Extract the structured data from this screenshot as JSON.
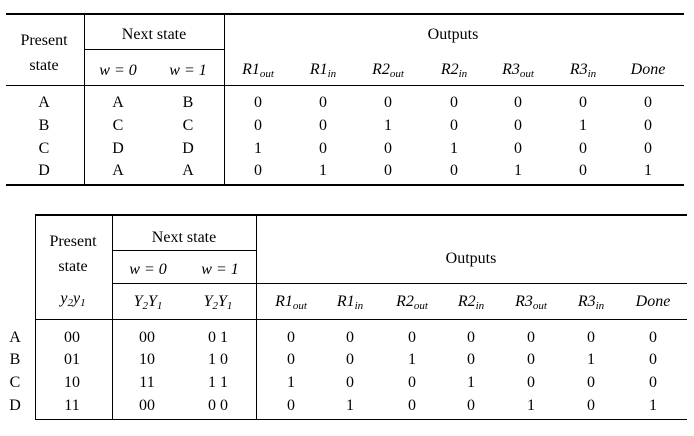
{
  "table1": {
    "header": {
      "present": "Present",
      "state": "state",
      "next_state": "Next state",
      "w0": "w = 0",
      "w1": "w = 1",
      "outputs": "Outputs",
      "out_cols": [
        {
          "base": "R1",
          "sub": "out"
        },
        {
          "base": "R1",
          "sub": "in"
        },
        {
          "base": "R2",
          "sub": "out"
        },
        {
          "base": "R2",
          "sub": "in"
        },
        {
          "base": "R3",
          "sub": "out"
        },
        {
          "base": "R3",
          "sub": "in"
        },
        {
          "base": "Done",
          "sub": ""
        }
      ]
    },
    "rows": [
      {
        "state": "A",
        "w0": "A",
        "w1": "B",
        "outputs": [
          "0",
          "0",
          "0",
          "0",
          "0",
          "0",
          "0"
        ]
      },
      {
        "state": "B",
        "w0": "C",
        "w1": "C",
        "outputs": [
          "0",
          "0",
          "1",
          "0",
          "0",
          "1",
          "0"
        ]
      },
      {
        "state": "C",
        "w0": "D",
        "w1": "D",
        "outputs": [
          "1",
          "0",
          "0",
          "1",
          "0",
          "0",
          "0"
        ]
      },
      {
        "state": "D",
        "w0": "A",
        "w1": "A",
        "outputs": [
          "0",
          "1",
          "0",
          "0",
          "1",
          "0",
          "1"
        ]
      }
    ]
  },
  "table2": {
    "header": {
      "present": "Present",
      "state": "state",
      "y2y1": "y2y1",
      "next_state": "Next state",
      "w0": "w = 0",
      "w1": "w = 1",
      "Y2Y1_a": "Y2Y1",
      "Y2Y1_b": "Y2Y1",
      "outputs": "Outputs",
      "out_cols": [
        {
          "base": "R1",
          "sub": "out"
        },
        {
          "base": "R1",
          "sub": "in"
        },
        {
          "base": "R2",
          "sub": "out"
        },
        {
          "base": "R2",
          "sub": "in"
        },
        {
          "base": "R3",
          "sub": "out"
        },
        {
          "base": "R3",
          "sub": "in"
        },
        {
          "base": "Done",
          "sub": ""
        }
      ]
    },
    "rows": [
      {
        "label": "A",
        "code": "00",
        "w0": "00",
        "w1": "0 1",
        "outputs": [
          "0",
          "0",
          "0",
          "0",
          "0",
          "0",
          "0"
        ]
      },
      {
        "label": "B",
        "code": "01",
        "w0": "10",
        "w1": "1 0",
        "outputs": [
          "0",
          "0",
          "1",
          "0",
          "0",
          "1",
          "0"
        ]
      },
      {
        "label": "C",
        "code": "10",
        "w0": "11",
        "w1": "1 1",
        "outputs": [
          "1",
          "0",
          "0",
          "1",
          "0",
          "0",
          "0"
        ]
      },
      {
        "label": "D",
        "code": "11",
        "w0": "00",
        "w1": "0 0",
        "outputs": [
          "0",
          "1",
          "0",
          "0",
          "1",
          "0",
          "1"
        ]
      }
    ]
  }
}
